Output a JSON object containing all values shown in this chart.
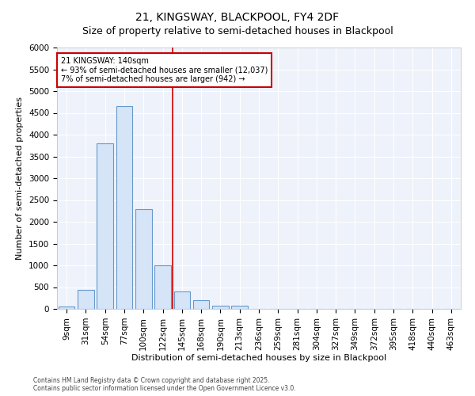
{
  "title": "21, KINGSWAY, BLACKPOOL, FY4 2DF",
  "subtitle": "Size of property relative to semi-detached houses in Blackpool",
  "xlabel": "Distribution of semi-detached houses by size in Blackpool",
  "ylabel": "Number of semi-detached properties",
  "bar_color": "#d6e4f7",
  "bar_edge_color": "#6699cc",
  "background_color": "#eef2fb",
  "grid_color": "#ffffff",
  "categories": [
    "9sqm",
    "31sqm",
    "54sqm",
    "77sqm",
    "100sqm",
    "122sqm",
    "145sqm",
    "168sqm",
    "190sqm",
    "213sqm",
    "236sqm",
    "259sqm",
    "281sqm",
    "304sqm",
    "327sqm",
    "349sqm",
    "372sqm",
    "395sqm",
    "418sqm",
    "440sqm",
    "463sqm"
  ],
  "values": [
    50,
    430,
    3800,
    4650,
    2300,
    1000,
    400,
    200,
    80,
    65,
    0,
    0,
    0,
    0,
    0,
    0,
    0,
    0,
    0,
    0,
    0
  ],
  "vline_index": 6,
  "vline_color": "#cc0000",
  "annotation_line1": "21 KINGSWAY: 140sqm",
  "annotation_line2": "← 93% of semi-detached houses are smaller (12,037)",
  "annotation_line3": "7% of semi-detached houses are larger (942) →",
  "annotation_box_color": "#ffffff",
  "annotation_box_edge": "#cc0000",
  "ylim": [
    0,
    6000
  ],
  "yticks": [
    0,
    500,
    1000,
    1500,
    2000,
    2500,
    3000,
    3500,
    4000,
    4500,
    5000,
    5500,
    6000
  ],
  "title_fontsize": 10,
  "subtitle_fontsize": 9,
  "axis_fontsize": 8,
  "tick_fontsize": 7.5,
  "footer1": "Contains HM Land Registry data © Crown copyright and database right 2025.",
  "footer2": "Contains public sector information licensed under the Open Government Licence v3.0."
}
